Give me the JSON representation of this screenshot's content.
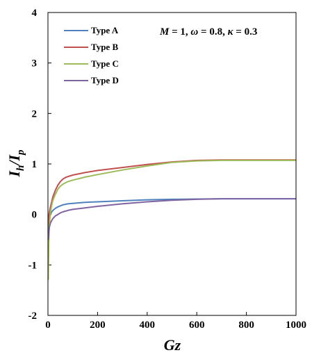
{
  "chart_data": {
    "type": "line",
    "xlabel_main": "Gz",
    "ylabel_main": "I",
    "ylabel_sub1": "h",
    "ylabel_sep": "/I",
    "ylabel_sub2": "p",
    "xlim": [
      0,
      1000
    ],
    "ylim": [
      -2,
      4
    ],
    "xticks": [
      0,
      200,
      400,
      600,
      800,
      1000
    ],
    "yticks": [
      -2,
      -1,
      0,
      1,
      2,
      3,
      4
    ],
    "grid": false,
    "legend_position": "top-left",
    "annotation": {
      "m": "M",
      "m_val": " = 1, ",
      "w": "ω",
      "w_val": " = 0.8, ",
      "k": "κ",
      "k_val": " = 0.3"
    },
    "series": [
      {
        "name": "Type A",
        "color": "#4f81bd",
        "x": [
          1,
          3,
          6,
          10,
          15,
          20,
          30,
          40,
          50,
          60,
          80,
          100,
          150,
          200,
          300,
          400,
          500,
          600,
          700,
          800,
          900,
          1000
        ],
        "y": [
          -0.35,
          -0.2,
          -0.08,
          0.0,
          0.05,
          0.08,
          0.12,
          0.15,
          0.17,
          0.19,
          0.21,
          0.22,
          0.24,
          0.25,
          0.27,
          0.29,
          0.3,
          0.305,
          0.31,
          0.31,
          0.31,
          0.31
        ]
      },
      {
        "name": "Type B",
        "color": "#c0504d",
        "x": [
          1,
          3,
          6,
          10,
          15,
          20,
          30,
          40,
          50,
          60,
          70,
          80,
          100,
          150,
          200,
          300,
          400,
          500,
          600,
          700,
          800,
          900,
          1000
        ],
        "y": [
          -0.2,
          -0.05,
          0.05,
          0.15,
          0.25,
          0.35,
          0.48,
          0.58,
          0.65,
          0.7,
          0.73,
          0.75,
          0.78,
          0.83,
          0.87,
          0.93,
          0.99,
          1.04,
          1.07,
          1.08,
          1.08,
          1.08,
          1.08
        ]
      },
      {
        "name": "Type C",
        "color": "#9bbb59",
        "x": [
          1,
          3,
          6,
          10,
          15,
          20,
          30,
          40,
          50,
          60,
          80,
          100,
          150,
          200,
          300,
          400,
          500,
          600,
          700,
          800,
          900,
          1000
        ],
        "y": [
          -1.3,
          -0.6,
          -0.2,
          0.05,
          0.18,
          0.28,
          0.4,
          0.5,
          0.56,
          0.6,
          0.65,
          0.68,
          0.74,
          0.79,
          0.88,
          0.96,
          1.03,
          1.06,
          1.07,
          1.07,
          1.07,
          1.07
        ]
      },
      {
        "name": "Type D",
        "color": "#8064a2",
        "x": [
          1,
          3,
          6,
          10,
          15,
          20,
          30,
          40,
          50,
          60,
          80,
          100,
          150,
          200,
          300,
          400,
          500,
          600,
          700,
          800,
          900,
          1000
        ],
        "y": [
          -0.5,
          -0.35,
          -0.25,
          -0.17,
          -0.12,
          -0.08,
          -0.03,
          0.0,
          0.03,
          0.05,
          0.08,
          0.1,
          0.13,
          0.16,
          0.21,
          0.25,
          0.28,
          0.3,
          0.31,
          0.31,
          0.31,
          0.31
        ]
      }
    ]
  }
}
